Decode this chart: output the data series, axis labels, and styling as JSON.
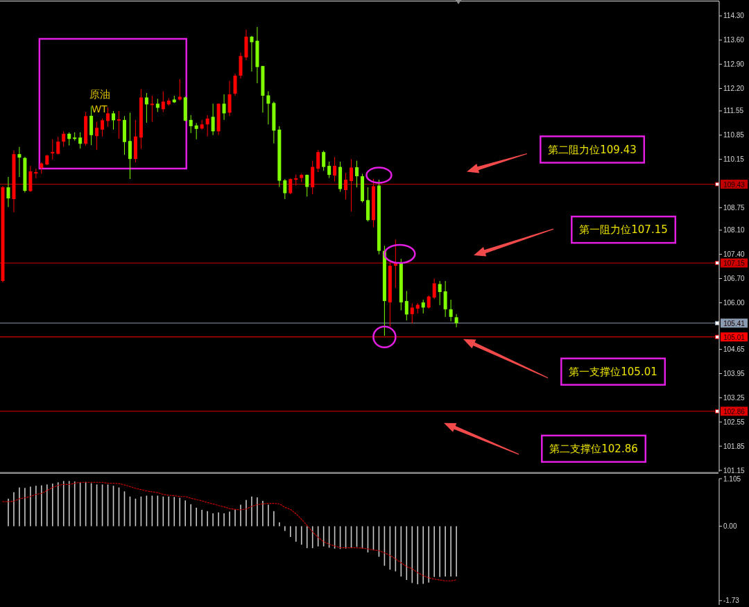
{
  "chart_data": [
    {
      "type": "candlestick",
      "title": "原油 WT",
      "categories": [
        null,
        null,
        null,
        null,
        null,
        null,
        null,
        null,
        null,
        null,
        null,
        null,
        null,
        null,
        null,
        null,
        null,
        null,
        null,
        null,
        null,
        null,
        null,
        null,
        null,
        null,
        null,
        null,
        null,
        null,
        null,
        null,
        null,
        null,
        null,
        null,
        null,
        null,
        null,
        null,
        null,
        null,
        null,
        null,
        null,
        null,
        null,
        null,
        null,
        null,
        null,
        null,
        null,
        null,
        null,
        null,
        null,
        null,
        null,
        null,
        null,
        null,
        null,
        null,
        null,
        null,
        null,
        null,
        null,
        null,
        null,
        null,
        null,
        null,
        null,
        null,
        null,
        null,
        null,
        null,
        null,
        null,
        null,
        null,
        null,
        null,
        null,
        null,
        null,
        null,
        null,
        null,
        null,
        null,
        null,
        null,
        null,
        null,
        null,
        null,
        null,
        null,
        null,
        null,
        null,
        null,
        null,
        null,
        null,
        null,
        null,
        null,
        null,
        null,
        null,
        null,
        null,
        null,
        null,
        null,
        null,
        null,
        null,
        null,
        null,
        null,
        null,
        null,
        null,
        null
      ],
      "ohlc": [
        [
          106.63,
          109.38,
          106.59,
          109.34
        ],
        [
          109.34,
          109.64,
          108.77,
          109.02
        ],
        [
          109.0,
          110.41,
          108.62,
          110.3
        ],
        [
          110.3,
          110.51,
          109.64,
          110.2
        ],
        [
          110.19,
          110.22,
          109.19,
          109.24
        ],
        [
          109.23,
          109.96,
          109.21,
          109.8
        ],
        [
          109.74,
          109.88,
          109.6,
          109.78
        ],
        [
          109.9,
          110.06,
          109.73,
          110.03
        ],
        [
          110.0,
          110.28,
          109.98,
          110.26
        ],
        [
          110.32,
          110.73,
          110.14,
          110.36
        ],
        [
          110.31,
          110.8,
          110.29,
          110.66
        ],
        [
          110.66,
          110.96,
          110.51,
          110.89
        ],
        [
          110.89,
          110.93,
          110.55,
          110.74
        ],
        [
          110.78,
          110.93,
          110.69,
          110.74
        ],
        [
          110.78,
          110.93,
          110.46,
          110.6
        ],
        [
          110.6,
          111.52,
          110.55,
          111.4
        ],
        [
          111.41,
          111.68,
          110.56,
          110.85
        ],
        [
          110.82,
          111.24,
          110.42,
          111.06
        ],
        [
          111.01,
          111.33,
          110.81,
          111.28
        ],
        [
          111.26,
          111.65,
          111.09,
          111.48
        ],
        [
          111.48,
          111.55,
          111.01,
          111.28
        ],
        [
          111.27,
          111.55,
          110.75,
          111.31
        ],
        [
          111.29,
          111.4,
          110.28,
          110.65
        ],
        [
          110.68,
          111.5,
          109.58,
          110.16
        ],
        [
          110.16,
          111.29,
          110.06,
          110.81
        ],
        [
          110.78,
          112.18,
          110.45,
          111.94
        ],
        [
          111.94,
          112.07,
          111.21,
          111.74
        ],
        [
          111.72,
          111.99,
          111.24,
          111.76
        ],
        [
          111.76,
          111.9,
          111.52,
          111.64
        ],
        [
          111.6,
          112.12,
          111.52,
          111.82
        ],
        [
          111.74,
          111.92,
          111.7,
          111.85
        ],
        [
          111.88,
          111.99,
          111.78,
          111.8
        ],
        [
          111.88,
          112.47,
          111.85,
          111.96
        ],
        [
          111.94,
          111.97,
          111.25,
          111.27
        ],
        [
          111.29,
          111.43,
          110.91,
          111.11
        ],
        [
          111.13,
          111.2,
          110.73,
          111.03
        ],
        [
          111.04,
          111.29,
          111.01,
          111.16
        ],
        [
          111.16,
          111.43,
          110.81,
          111.33
        ],
        [
          111.38,
          111.76,
          110.85,
          110.96
        ],
        [
          110.96,
          111.76,
          110.85,
          111.76
        ],
        [
          111.76,
          112.03,
          111.29,
          111.48
        ],
        [
          111.5,
          112.42,
          111.4,
          112.03
        ],
        [
          112.05,
          112.63,
          111.99,
          112.57
        ],
        [
          112.57,
          113.24,
          112.49,
          113.14
        ],
        [
          113.1,
          113.9,
          113.02,
          113.7
        ],
        [
          113.7,
          113.72,
          112.69,
          113.54
        ],
        [
          113.58,
          113.98,
          112.35,
          112.82
        ],
        [
          112.85,
          112.85,
          111.5,
          111.99
        ],
        [
          112.0,
          112.12,
          111.16,
          111.76
        ],
        [
          111.78,
          111.82,
          110.61,
          110.98
        ],
        [
          111.01,
          111.11,
          109.35,
          109.53
        ],
        [
          109.54,
          109.58,
          109.0,
          109.17
        ],
        [
          109.17,
          109.6,
          109.14,
          109.58
        ],
        [
          109.56,
          109.71,
          109.39,
          109.6
        ],
        [
          109.61,
          109.73,
          109.49,
          109.7
        ],
        [
          109.7,
          109.71,
          109.07,
          109.35
        ],
        [
          109.34,
          110.11,
          109.14,
          109.93
        ],
        [
          109.88,
          110.42,
          109.78,
          110.36
        ],
        [
          110.36,
          110.4,
          109.82,
          109.93
        ],
        [
          109.96,
          110.08,
          109.61,
          109.7
        ],
        [
          109.68,
          110.21,
          109.51,
          109.96
        ],
        [
          109.93,
          110.08,
          109.21,
          109.29
        ],
        [
          109.26,
          109.76,
          108.99,
          109.56
        ],
        [
          109.52,
          110.16,
          108.64,
          109.91
        ],
        [
          109.92,
          110.11,
          109.34,
          109.66
        ],
        [
          109.66,
          109.73,
          108.9,
          108.94
        ],
        [
          108.97,
          109.34,
          108.35,
          108.39
        ],
        [
          108.39,
          109.58,
          108.19,
          109.37
        ],
        [
          109.39,
          109.56,
          107.4,
          107.5
        ],
        [
          107.5,
          107.65,
          105.04,
          106.05
        ],
        [
          106.01,
          107.17,
          105.31,
          107.07
        ],
        [
          107.07,
          107.83,
          106.43,
          107.13
        ],
        [
          107.17,
          107.27,
          105.78,
          106.01
        ],
        [
          106.05,
          106.34,
          105.49,
          105.66
        ],
        [
          105.67,
          105.98,
          105.4,
          105.86
        ],
        [
          105.83,
          105.99,
          105.69,
          105.94
        ],
        [
          106.01,
          106.09,
          105.69,
          105.86
        ],
        [
          105.86,
          106.21,
          105.83,
          106.18
        ],
        [
          106.15,
          106.7,
          106.11,
          106.56
        ],
        [
          106.54,
          106.63,
          105.93,
          106.31
        ],
        [
          106.33,
          106.63,
          105.59,
          105.81
        ],
        [
          105.81,
          106.09,
          105.46,
          105.59
        ],
        [
          105.58,
          105.67,
          105.29,
          105.41
        ],
        null,
        null,
        null,
        null,
        null,
        null,
        null,
        null,
        null,
        null,
        null,
        null,
        null,
        null,
        null,
        null,
        null,
        null,
        null,
        null,
        null,
        null,
        null,
        null,
        null,
        null,
        null,
        null,
        null,
        null,
        null,
        null,
        null,
        null,
        null,
        null,
        null,
        null,
        null,
        null,
        null,
        null,
        null,
        null,
        null,
        null,
        null
      ],
      "colors": [
        "#ff0000",
        "#7fff00",
        "#ff0000",
        "#7fff00",
        "#7fff00",
        "#ff0000",
        "#ff0000",
        "#ff0000",
        "#ff0000",
        "#ff0000",
        "#ff0000",
        "#ff0000",
        "#7fff00",
        "#7fff00",
        "#7fff00",
        "#ff0000",
        "#7fff00",
        "#ff0000",
        "#ff0000",
        "#ff0000",
        "#7fff00",
        "#ff0000",
        "#7fff00",
        "#7fff00",
        "#ff0000",
        "#ff0000",
        "#7fff00",
        "#ff0000",
        "#7fff00",
        "#ff0000",
        "#ff0000",
        "#7fff00",
        "#ff0000",
        "#7fff00",
        "#7fff00",
        "#7fff00",
        "#ff0000",
        "#ff0000",
        "#7fff00",
        "#ff0000",
        "#7fff00",
        "#ff0000",
        "#ff0000",
        "#ff0000",
        "#ff0000",
        "#7fff00",
        "#7fff00",
        "#7fff00",
        "#7fff00",
        "#7fff00",
        "#7fff00",
        "#7fff00",
        "#ff0000",
        "#ff0000",
        "#ff0000",
        "#7fff00",
        "#ff0000",
        "#ff0000",
        "#7fff00",
        "#7fff00",
        "#ff0000",
        "#7fff00",
        "#ff0000",
        "#ff0000",
        "#7fff00",
        "#7fff00",
        "#7fff00",
        "#ff0000",
        "#7fff00",
        "#7fff00",
        "#ff0000",
        "#ff0000",
        "#7fff00",
        "#7fff00",
        "#ff0000",
        "#ff0000",
        "#7fff00",
        "#ff0000",
        "#ff0000",
        "#7fff00",
        "#7fff00",
        "#7fff00",
        "#7fff00",
        null,
        null,
        null,
        null,
        null,
        null,
        null,
        null,
        null,
        null,
        null,
        null,
        null,
        null,
        null,
        null,
        null,
        null,
        null,
        null,
        null,
        null,
        null,
        null,
        null,
        null,
        null,
        null,
        null,
        null,
        null,
        null,
        null,
        null,
        null,
        null,
        null,
        null,
        null,
        null,
        null,
        null,
        null,
        null,
        null,
        null,
        null
      ],
      "ylim": [
        101.11,
        114.72
      ],
      "yticks": [
        {
          "value": 114.3,
          "label": "114.30"
        },
        {
          "value": 113.6,
          "label": "113.60"
        },
        {
          "value": 112.9,
          "label": "112.90"
        },
        {
          "value": 112.2,
          "label": "112.20"
        },
        111.55,
        110.85,
        110.15,
        108.75,
        {
          "value": 108.1,
          "label": "108.10"
        },
        {
          "value": 107.4,
          "label": "107.40"
        },
        {
          "value": 106.7,
          "label": "106.70"
        },
        {
          "value": 106,
          "label": "106.00"
        },
        104.65,
        103.95,
        103.25,
        102.55,
        101.85,
        101.15
      ],
      "ref_lines": [
        {
          "axis": "y",
          "value": 109.43,
          "label": "109.43",
          "color": "#c00000"
        },
        {
          "axis": "y",
          "value": 107.15,
          "label": "107.15",
          "color": "#d00000"
        },
        {
          "axis": "y",
          "value": 105.41,
          "label": "105.41",
          "color": "#8a9ab0"
        },
        {
          "axis": "y",
          "value": 105.01,
          "label": "105.01",
          "color": "#ff0000"
        },
        {
          "axis": "y",
          "value": 102.86,
          "label": "102.86",
          "color": "#e00000"
        }
      ],
      "annotations": [
        {
          "text": "第二阻力位109.43",
          "y": 109.43
        },
        {
          "text": "第一阻力位107.15",
          "y": 107.15
        },
        {
          "text": "第一支撑位105.01",
          "y": 105.01
        },
        {
          "text": "第二支撑位102.86",
          "y": 102.86
        }
      ],
      "tick_labels": "y"
    },
    {
      "type": "bar",
      "categories": [
        null,
        null,
        null,
        null,
        null,
        null,
        null,
        null,
        null,
        null,
        null,
        null,
        null,
        null,
        null,
        null,
        null,
        null,
        null,
        null,
        null,
        null,
        null,
        null,
        null,
        null,
        null,
        null,
        null,
        null,
        null,
        null,
        null,
        null,
        null,
        null,
        null,
        null,
        null,
        null,
        null,
        null,
        null,
        null,
        null,
        null,
        null,
        null,
        null,
        null,
        null,
        null,
        null,
        null,
        null,
        null,
        null,
        null,
        null,
        null,
        null,
        null,
        null,
        null,
        null,
        null,
        null,
        null,
        null,
        null,
        null,
        null,
        null,
        null,
        null,
        null,
        null,
        null,
        null,
        null,
        null,
        null,
        null,
        null,
        null,
        null,
        null,
        null,
        null,
        null,
        null,
        null,
        null,
        null,
        null,
        null,
        null,
        null,
        null,
        null,
        null,
        null,
        null,
        null,
        null,
        null,
        null,
        null,
        null,
        null,
        null,
        null,
        null,
        null,
        null,
        null,
        null,
        null,
        null,
        null,
        null,
        null,
        null,
        null,
        null,
        null,
        null,
        null,
        null,
        null
      ],
      "series": [
        {
          "type": "bar",
          "color": "#c8c8c8",
          "values": [
            null,
            0.64,
            0.79,
            0.9,
            0.89,
            0.92,
            0.94,
            0.95,
            0.97,
            0.99,
            1.02,
            1.05,
            1.05,
            1.04,
            1.02,
            1.03,
            1.0,
            0.97,
            0.97,
            0.97,
            0.94,
            0.9,
            0.81,
            0.69,
            0.64,
            0.69,
            0.71,
            0.71,
            0.71,
            0.69,
            0.69,
            0.68,
            0.66,
            0.6,
            0.51,
            0.43,
            0.38,
            0.35,
            0.3,
            0.32,
            0.3,
            0.34,
            0.39,
            0.5,
            0.61,
            0.69,
            0.67,
            0.59,
            0.5,
            0.35,
            0.09,
            -0.11,
            -0.25,
            -0.36,
            -0.43,
            -0.51,
            -0.51,
            -0.47,
            -0.47,
            -0.5,
            -0.52,
            -0.53,
            -0.52,
            -0.5,
            -0.48,
            -0.52,
            -0.61,
            -0.56,
            -0.71,
            -0.92,
            -1.01,
            -1.05,
            -1.17,
            -1.25,
            -1.32,
            -1.35,
            -1.34,
            -1.31,
            -1.18,
            -1.18,
            -1.17,
            -1.17,
            -1.17,
            null,
            null,
            null,
            null,
            null,
            null,
            null,
            null,
            null,
            null,
            null,
            null,
            null,
            null,
            null,
            null,
            null,
            null,
            null,
            null,
            null,
            null,
            null,
            null,
            null,
            null,
            null,
            null,
            null,
            null,
            null,
            null,
            null,
            null,
            null,
            null,
            null,
            null,
            null,
            null,
            null,
            null,
            null,
            null,
            null,
            null,
            null
          ]
        },
        {
          "type": "line",
          "color": "#c80000",
          "line_style": "dotted",
          "values": [
            0.57,
            0.57,
            0.58,
            0.64,
            0.66,
            0.69,
            0.74,
            0.76,
            0.83,
            0.9,
            0.95,
            0.97,
            0.97,
            1.0,
            1.02,
            1.02,
            1.02,
            1.02,
            1.02,
            1.0,
            1.0,
            0.99,
            0.96,
            0.92,
            0.88,
            0.85,
            0.82,
            0.8,
            0.78,
            0.74,
            0.72,
            0.71,
            0.69,
            0.69,
            0.65,
            0.62,
            0.59,
            0.55,
            0.52,
            0.48,
            0.45,
            0.41,
            0.39,
            0.38,
            0.4,
            0.46,
            0.5,
            0.52,
            0.53,
            0.53,
            0.52,
            0.44,
            0.39,
            0.29,
            0.16,
            0.02,
            -0.13,
            -0.26,
            -0.36,
            -0.42,
            -0.46,
            -0.5,
            -0.5,
            -0.5,
            -0.5,
            -0.51,
            -0.53,
            -0.55,
            -0.57,
            -0.62,
            -0.68,
            -0.76,
            -0.85,
            -0.94,
            -0.99,
            -1.08,
            -1.15,
            -1.2,
            -1.23,
            -1.25,
            -1.27,
            -1.27,
            -1.25,
            null,
            null,
            null,
            null,
            null,
            null,
            null,
            null,
            null,
            null,
            null,
            null,
            null,
            null,
            null,
            null,
            null,
            null,
            null,
            null,
            null,
            null,
            null,
            null,
            null,
            null,
            null,
            null,
            null,
            null,
            null,
            null,
            null,
            null,
            null,
            null,
            null,
            null,
            null,
            null,
            null,
            null,
            null,
            null,
            null,
            null,
            null
          ]
        }
      ],
      "ylim": [
        -1.83,
        1.105
      ],
      "yticks": [
        1.105,
        {
          "value": 0,
          "label": "0.00"
        },
        -1.73
      ],
      "tick_labels": "y"
    }
  ]
}
